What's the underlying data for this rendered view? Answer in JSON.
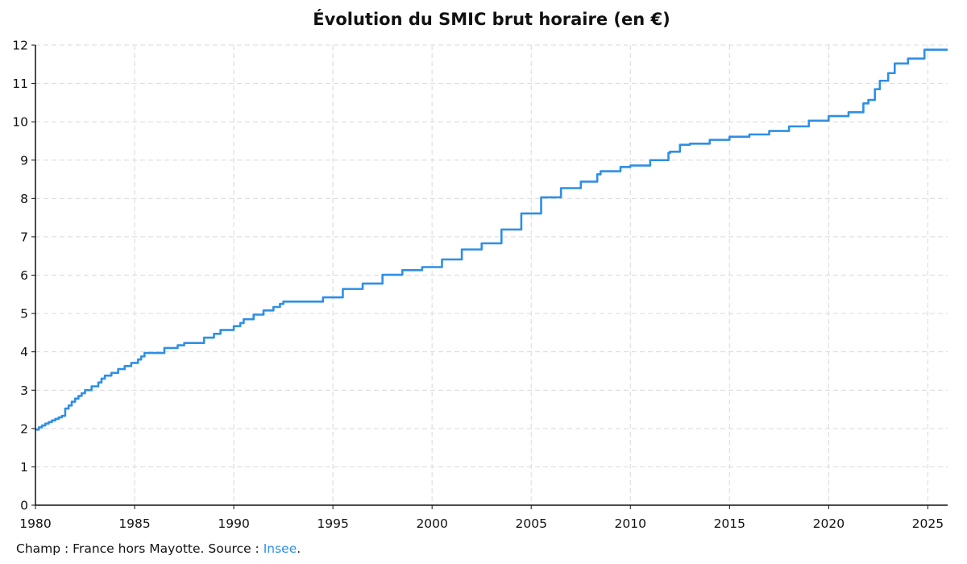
{
  "colors": {
    "series": "#2e8fe6",
    "link": "#2e8fe6"
  },
  "chart_data": {
    "type": "line",
    "title": "Évolution du SMIC brut horaire (en €)",
    "xlabel": "",
    "ylabel": "",
    "xlim": [
      1980,
      2026
    ],
    "ylim": [
      0,
      12
    ],
    "x_ticks": [
      "1980",
      "1985",
      "1990",
      "1995",
      "2000",
      "2005",
      "2010",
      "2015",
      "2020",
      "2025"
    ],
    "y_ticks": [
      "0",
      "1",
      "2",
      "3",
      "4",
      "5",
      "6",
      "7",
      "8",
      "9",
      "10",
      "11",
      "12"
    ],
    "grid": true,
    "legend": "none",
    "series": [
      {
        "step": "post",
        "x": [
          1980.0,
          1980.17,
          1980.33,
          1980.5,
          1980.67,
          1980.83,
          1981.0,
          1981.17,
          1981.33,
          1981.5,
          1981.67,
          1981.83,
          1982.0,
          1982.17,
          1982.33,
          1982.5,
          1982.83,
          1983.17,
          1983.33,
          1983.5,
          1983.83,
          1984.17,
          1984.5,
          1984.83,
          1985.17,
          1985.33,
          1985.5,
          1986.5,
          1987.17,
          1987.5,
          1988.5,
          1989.0,
          1989.33,
          1990.0,
          1990.33,
          1990.5,
          1991.0,
          1991.5,
          1992.0,
          1992.33,
          1992.5,
          1993.5,
          1994.5,
          1995.5,
          1996.5,
          1997.5,
          1998.5,
          1999.5,
          2000.5,
          2001.5,
          2002.5,
          2003.5,
          2004.5,
          2005.5,
          2006.5,
          2007.5,
          2008.33,
          2008.5,
          2009.5,
          2010.0,
          2011.0,
          2011.92,
          2012.0,
          2012.5,
          2013.0,
          2014.0,
          2015.0,
          2016.0,
          2017.0,
          2018.0,
          2019.0,
          2020.0,
          2021.0,
          2021.75,
          2022.0,
          2022.33,
          2022.58,
          2023.0,
          2023.33,
          2024.0,
          2024.83,
          2026.0
        ],
        "y": [
          1.97,
          2.03,
          2.08,
          2.13,
          2.17,
          2.21,
          2.25,
          2.29,
          2.33,
          2.52,
          2.6,
          2.7,
          2.78,
          2.85,
          2.92,
          3.0,
          3.1,
          3.2,
          3.3,
          3.38,
          3.45,
          3.55,
          3.63,
          3.71,
          3.8,
          3.88,
          3.97,
          4.1,
          4.17,
          4.23,
          4.37,
          4.47,
          4.57,
          4.67,
          4.75,
          4.85,
          4.97,
          5.08,
          5.17,
          5.25,
          5.31,
          5.31,
          5.42,
          5.64,
          5.78,
          6.01,
          6.13,
          6.21,
          6.41,
          6.67,
          6.83,
          7.19,
          7.61,
          8.03,
          8.27,
          8.44,
          8.63,
          8.71,
          8.82,
          8.86,
          9.0,
          9.19,
          9.22,
          9.4,
          9.43,
          9.53,
          9.61,
          9.67,
          9.76,
          9.88,
          10.03,
          10.15,
          10.25,
          10.48,
          10.57,
          10.85,
          11.07,
          11.27,
          11.52,
          11.65,
          11.88,
          11.88
        ]
      }
    ]
  },
  "footer": {
    "prefix": "Champ : France hors Mayotte. Source : ",
    "link_text": "Insee",
    "suffix": "."
  }
}
